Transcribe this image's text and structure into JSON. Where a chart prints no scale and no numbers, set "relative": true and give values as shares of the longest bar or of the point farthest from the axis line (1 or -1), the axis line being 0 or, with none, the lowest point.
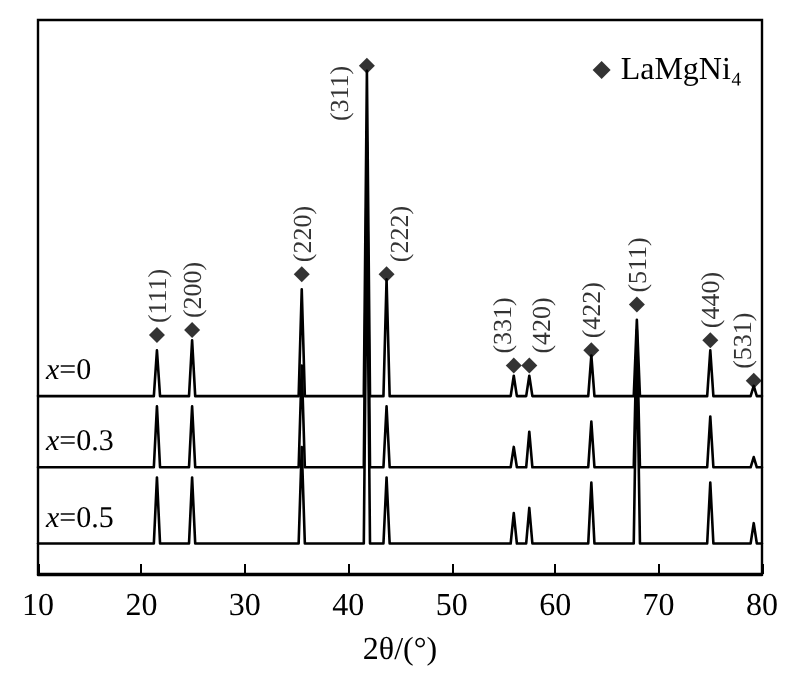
{
  "chart_data": {
    "type": "line",
    "relative": true,
    "xlabel": "2θ/(°)",
    "xlim": [
      10,
      80
    ],
    "xticks": [
      10,
      20,
      30,
      40,
      50,
      60,
      70,
      80
    ],
    "grid": false,
    "legend": "top right",
    "line_style": "solid",
    "marker": "none",
    "x": [
      10,
      21.2,
      21.5,
      21.8,
      24.6,
      24.9,
      25.2,
      35.2,
      35.5,
      35.8,
      41.5,
      41.8,
      42.1,
      43.4,
      43.7,
      44.0,
      55.7,
      56.0,
      56.3,
      57.2,
      57.5,
      57.8,
      63.2,
      63.5,
      63.8,
      67.6,
      67.9,
      68.2,
      74.7,
      75.0,
      75.3,
      78.9,
      79.2,
      79.5,
      80
    ],
    "series": [
      {
        "name": "x=0",
        "color": "#000000",
        "values": [
          0.35,
          0.35,
          0.44,
          0.35,
          0.35,
          0.46,
          0.35,
          0.35,
          0.56,
          0.35,
          0.35,
          0.99,
          0.35,
          0.35,
          0.58,
          0.35,
          0.35,
          0.39,
          0.35,
          0.35,
          0.39,
          0.35,
          0.35,
          0.43,
          0.35,
          0.35,
          0.5,
          0.35,
          0.35,
          0.44,
          0.35,
          0.35,
          0.37,
          0.35,
          0.35
        ]
      },
      {
        "name": "x=0.3",
        "color": "#000000",
        "values": [
          0.21,
          0.21,
          0.33,
          0.21,
          0.21,
          0.33,
          0.21,
          0.21,
          0.41,
          0.21,
          0.21,
          0.85,
          0.21,
          0.21,
          0.33,
          0.21,
          0.21,
          0.25,
          0.21,
          0.21,
          0.28,
          0.21,
          0.21,
          0.3,
          0.21,
          0.21,
          0.48,
          0.21,
          0.21,
          0.31,
          0.21,
          0.21,
          0.23,
          0.21,
          0.21
        ]
      },
      {
        "name": "x=0.5",
        "color": "#000000",
        "values": [
          0.06,
          0.06,
          0.19,
          0.06,
          0.06,
          0.19,
          0.06,
          0.06,
          0.25,
          0.06,
          0.06,
          0.7,
          0.06,
          0.06,
          0.19,
          0.06,
          0.06,
          0.12,
          0.06,
          0.06,
          0.13,
          0.06,
          0.06,
          0.18,
          0.06,
          0.06,
          0.45,
          0.06,
          0.06,
          0.18,
          0.06,
          0.06,
          0.1,
          0.06,
          0.06
        ]
      },
      {
        "name": "LaMgNi₄",
        "type": "scatter",
        "marker": "diamond",
        "color": "#000000",
        "x": [
          21.5,
          24.9,
          35.5,
          41.8,
          43.7,
          56.0,
          57.5,
          63.5,
          67.9,
          75.0,
          79.2
        ],
        "values": [
          0.47,
          0.48,
          0.59,
          1.0,
          0.59,
          0.41,
          0.41,
          0.44,
          0.53,
          0.46,
          0.38
        ]
      }
    ],
    "annotations": [
      {
        "text": "(111)",
        "x": 21.5,
        "y": 0.47
      },
      {
        "text": "(200)",
        "x": 24.9,
        "y": 0.48
      },
      {
        "text": "(220)",
        "x": 35.5,
        "y": 0.59
      },
      {
        "text": "(311)",
        "x": 41.8,
        "y": 1.0
      },
      {
        "text": "(222)",
        "x": 43.7,
        "y": 0.59
      },
      {
        "text": "(331)",
        "x": 56.0,
        "y": 0.41
      },
      {
        "text": "(420)",
        "x": 57.5,
        "y": 0.41
      },
      {
        "text": "(422)",
        "x": 63.5,
        "y": 0.44
      },
      {
        "text": "(511)",
        "x": 67.9,
        "y": 0.53
      },
      {
        "text": "(440)",
        "x": 75.0,
        "y": 0.46
      },
      {
        "text": "(531)",
        "x": 79.2,
        "y": 0.38
      }
    ]
  }
}
